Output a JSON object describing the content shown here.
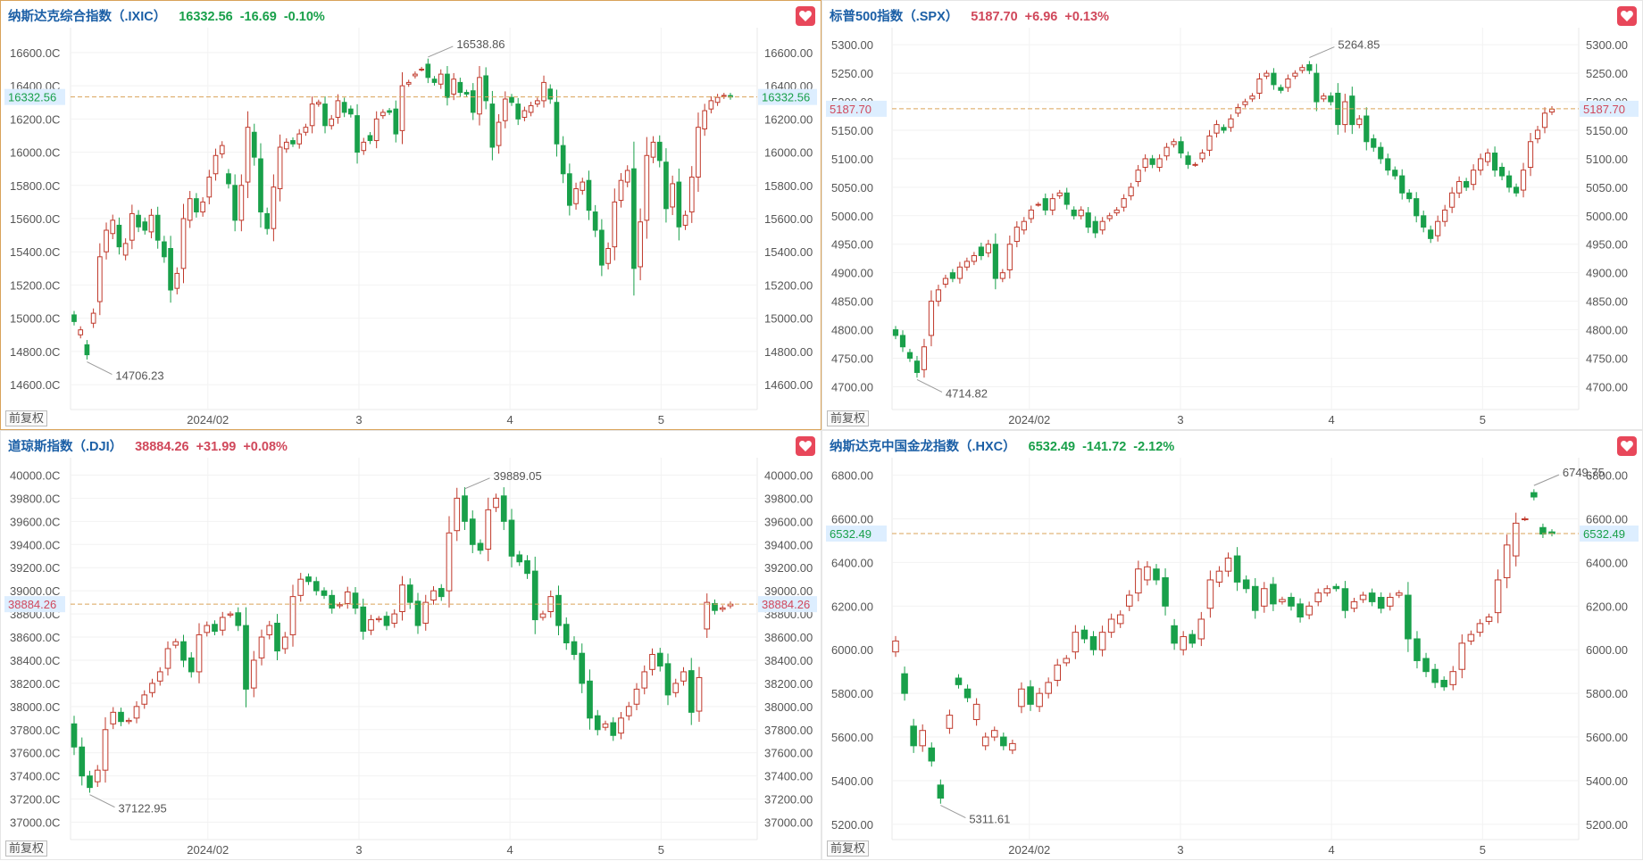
{
  "colors": {
    "up": "#c0392b",
    "down": "#19a04a",
    "up_text": "#d0485b",
    "down_text": "#19a04a",
    "name": "#1b5fa6",
    "selected_border": "#d9a35a",
    "price_line": "#d9a35a",
    "price_bg": "#ddeeff"
  },
  "icons": {
    "favorite": "heart-icon"
  },
  "panels": [
    {
      "id": "ixic",
      "selected": true,
      "name": "纳斯达克综合指数（.IXIC）",
      "value": "16332.56",
      "change": "-16.69",
      "pct": "-0.10%",
      "direction": "down",
      "adj_label": "前复权",
      "price_label": "16332.56",
      "high_label": "16538.86",
      "low_label": "14706.23",
      "ticks": [
        "16600.0C",
        "16400.0C",
        "16200.0C",
        "16000.0C",
        "15800.0C",
        "15600.0C",
        "15400.0C",
        "15200.0C",
        "15000.0C",
        "14800.0C",
        "14600.0C"
      ],
      "right_ticks": [
        "16600.00",
        "16400.00",
        "16200.00",
        "16000.00",
        "15800.00",
        "15600.00",
        "15400.00",
        "15200.00",
        "15000.00",
        "14800.00",
        "14600.00"
      ],
      "x_labels": [
        "2024/02",
        "3",
        "4",
        "5"
      ]
    },
    {
      "id": "spx",
      "selected": false,
      "name": "标普500指数（.SPX）",
      "value": "5187.70",
      "change": "+6.96",
      "pct": "+0.13%",
      "direction": "up",
      "adj_label": "前复权",
      "price_label": "5187.70",
      "high_label": "5264.85",
      "low_label": "4714.82",
      "ticks": [
        "5300.00",
        "5250.00",
        "5200.00",
        "5150.00",
        "5100.00",
        "5050.00",
        "5000.00",
        "4950.00",
        "4900.00",
        "4850.00",
        "4800.00",
        "4750.00",
        "4700.00"
      ],
      "right_ticks": [
        "5300.00",
        "5250.00",
        "5200.00",
        "5150.00",
        "5100.00",
        "5050.00",
        "5000.00",
        "4950.00",
        "4900.00",
        "4850.00",
        "4800.00",
        "4750.00",
        "4700.00"
      ],
      "x_labels": [
        "2024/02",
        "3",
        "4",
        "5"
      ]
    },
    {
      "id": "dji",
      "selected": false,
      "name": "道琼斯指数（.DJI）",
      "value": "38884.26",
      "change": "+31.99",
      "pct": "+0.08%",
      "direction": "up",
      "adj_label": "前复权",
      "price_label": "38884.26",
      "high_label": "39889.05",
      "low_label": "37122.95",
      "ticks": [
        "40000.0C",
        "39800.0C",
        "39600.0C",
        "39400.0C",
        "39200.0C",
        "39000.0C",
        "38800.0C",
        "38600.0C",
        "38400.0C",
        "38200.0C",
        "38000.0C",
        "37800.0C",
        "37600.0C",
        "37400.0C",
        "37200.0C",
        "37000.0C"
      ],
      "right_ticks": [
        "40000.00",
        "39800.00",
        "39600.00",
        "39400.00",
        "39200.00",
        "39000.00",
        "38800.00",
        "38600.00",
        "38400.00",
        "38200.00",
        "38000.00",
        "37800.00",
        "37600.00",
        "37400.00",
        "37200.00",
        "37000.00"
      ],
      "x_labels": [
        "2024/02",
        "3",
        "4",
        "5"
      ]
    },
    {
      "id": "hxc",
      "selected": false,
      "name": "纳斯达克中国金龙指数（.HXC）",
      "value": "6532.49",
      "change": "-141.72",
      "pct": "-2.12%",
      "direction": "down",
      "adj_label": "前复权",
      "price_label": "6532.49",
      "high_label": "6749.75",
      "low_label": "5311.61",
      "ticks": [
        "6800.00",
        "6600.00",
        "6400.00",
        "6200.00",
        "6000.00",
        "5800.00",
        "5600.00",
        "5400.00",
        "5200.00"
      ],
      "right_ticks": [
        "6800.00",
        "6600.00",
        "6400.00",
        "6200.00",
        "6000.00",
        "5800.00",
        "5600.00",
        "5400.00",
        "5200.00"
      ],
      "x_labels": [
        "2024/02",
        "3",
        "4",
        "5"
      ]
    }
  ],
  "chart_data": [
    {
      "type": "candlestick",
      "title": "纳斯达克综合指数（.IXIC）",
      "ylim": [
        14450,
        16750
      ],
      "x_labels": [
        "2024/02",
        "3",
        "4",
        "5"
      ],
      "last_price": 16332.56,
      "annotated_high": 16538.86,
      "annotated_low": 14706.23,
      "closes": [
        14980,
        14930,
        14780,
        15030,
        15370,
        15530,
        15590,
        15430,
        15450,
        15630,
        15550,
        15530,
        15620,
        15470,
        15370,
        15170,
        15270,
        15600,
        15720,
        15640,
        15700,
        15850,
        15980,
        16040,
        15810,
        15590,
        15800,
        16150,
        15970,
        15640,
        15540,
        15790,
        16030,
        16060,
        16050,
        16110,
        16150,
        16290,
        16300,
        16160,
        16200,
        16310,
        16240,
        16230,
        16000,
        16060,
        16070,
        16200,
        16240,
        16240,
        16110,
        16400,
        16420,
        16470,
        16500,
        16450,
        16420,
        16470,
        16330,
        16440,
        16360,
        16350,
        16240,
        16450,
        16310,
        16030,
        16180,
        16320,
        16300,
        16200,
        16250,
        16280,
        16310,
        16420,
        16320,
        16050,
        15870,
        15680,
        15780,
        15820,
        15650,
        15530,
        15320,
        15420,
        15700,
        15830,
        15890,
        15300,
        15580,
        15980,
        16060,
        15950,
        15660,
        15810,
        15550,
        15620,
        15850,
        16150,
        16250,
        16310,
        16330,
        16342,
        16332
      ],
      "opens": [
        15020,
        14900,
        14840,
        14970,
        15100,
        15400,
        15510,
        15560,
        15380,
        15470,
        15620,
        15580,
        15520,
        15620,
        15460,
        15420,
        15180,
        15300,
        15590,
        15720,
        15640,
        15730,
        15870,
        15990,
        15870,
        15800,
        15590,
        15820,
        16120,
        15960,
        15630,
        15540,
        15780,
        16020,
        16070,
        16050,
        16120,
        16160,
        16290,
        16290,
        16160,
        16210,
        16300,
        16260,
        16220,
        16010,
        16100,
        16070,
        16220,
        16250,
        16260,
        16130,
        16410,
        16460,
        16500,
        16530,
        16440,
        16410,
        16470,
        16350,
        16420,
        16360,
        16370,
        16230,
        16460,
        16290,
        16040,
        16190,
        16330,
        16290,
        16210,
        16240,
        16290,
        16310,
        16380,
        16300,
        16040,
        15870,
        15690,
        15770,
        15830,
        15640,
        15530,
        15330,
        15430,
        15710,
        15820,
        15900,
        15310,
        15590,
        15970,
        16060,
        15940,
        15670,
        15820,
        15560,
        15640,
        15850,
        16140,
        16260,
        16300,
        16336,
        16341
      ]
    },
    {
      "type": "candlestick",
      "title": "标普500指数（.SPX）",
      "ylim": [
        4660,
        5330
      ],
      "x_labels": [
        "2024/02",
        "3",
        "4",
        "5"
      ],
      "last_price": 5187.7,
      "annotated_high": 5264.85,
      "annotated_low": 4714.82,
      "closes": [
        4790,
        4770,
        4750,
        4725,
        4770,
        4850,
        4870,
        4890,
        4890,
        4910,
        4920,
        4930,
        4930,
        4950,
        4890,
        4900,
        4950,
        4980,
        4990,
        5010,
        5020,
        5010,
        5030,
        5040,
        5020,
        5000,
        5010,
        4980,
        4970,
        4990,
        5000,
        5010,
        5030,
        5050,
        5080,
        5100,
        5090,
        5100,
        5120,
        5130,
        5110,
        5090,
        5090,
        5110,
        5140,
        5160,
        5150,
        5170,
        5190,
        5200,
        5210,
        5240,
        5250,
        5230,
        5220,
        5240,
        5250,
        5260,
        5255,
        5200,
        5210,
        5200,
        5160,
        5200,
        5160,
        5170,
        5130,
        5120,
        5100,
        5080,
        5070,
        5040,
        5030,
        5000,
        4980,
        4960,
        4990,
        5010,
        5040,
        5060,
        5050,
        5080,
        5100,
        5110,
        5080,
        5070,
        5050,
        5040,
        5080,
        5130,
        5150,
        5180,
        5187
      ],
      "opens": [
        4800,
        4790,
        4760,
        4745,
        4730,
        4790,
        4850,
        4880,
        4900,
        4890,
        4910,
        4920,
        4945,
        4935,
        4950,
        4890,
        4905,
        4955,
        4975,
        4995,
        5020,
        5030,
        5010,
        5035,
        5040,
        5010,
        5000,
        5005,
        4990,
        4975,
        4995,
        5005,
        5015,
        5035,
        5060,
        5085,
        5100,
        5085,
        5105,
        5125,
        5130,
        5105,
        5090,
        5100,
        5115,
        5145,
        5155,
        5155,
        5180,
        5195,
        5205,
        5215,
        5245,
        5250,
        5225,
        5225,
        5245,
        5255,
        5265,
        5250,
        5205,
        5210,
        5215,
        5160,
        5210,
        5160,
        5175,
        5135,
        5120,
        5100,
        5080,
        5070,
        5040,
        5030,
        5000,
        4975,
        4965,
        4990,
        5015,
        5040,
        5060,
        5055,
        5080,
        5095,
        5110,
        5085,
        5070,
        5050,
        5045,
        5085,
        5135,
        5155,
        5182
      ]
    },
    {
      "type": "candlestick",
      "title": "道琼斯指数（.DJI）",
      "ylim": [
        36850,
        40150
      ],
      "x_labels": [
        "2024/02",
        "3",
        "4",
        "5"
      ],
      "last_price": 38884.26,
      "annotated_high": 39889.05,
      "annotated_low": 37122.95,
      "closes": [
        37650,
        37400,
        37300,
        37450,
        37800,
        37950,
        37870,
        37880,
        38000,
        38100,
        38200,
        38300,
        38500,
        38560,
        38400,
        38300,
        38620,
        38700,
        38650,
        38770,
        38800,
        38700,
        38150,
        38400,
        38600,
        38700,
        38480,
        38600,
        38950,
        39100,
        39080,
        39000,
        38960,
        38850,
        38880,
        38990,
        38850,
        38650,
        38750,
        38760,
        38700,
        38800,
        39050,
        38900,
        38700,
        38900,
        39000,
        38950,
        39500,
        39800,
        39600,
        39400,
        39350,
        39700,
        39800,
        39600,
        39300,
        39250,
        39150,
        38750,
        38800,
        38950,
        38700,
        38550,
        38450,
        38200,
        37900,
        37800,
        37850,
        37750,
        37900,
        38000,
        38150,
        38300,
        38450,
        38350,
        38100,
        38200,
        38300,
        37950,
        38250,
        38900,
        38830,
        38852,
        38884
      ],
      "opens": [
        37850,
        37650,
        37400,
        37350,
        37450,
        37850,
        37950,
        37870,
        37900,
        38020,
        38120,
        38220,
        38330,
        38530,
        38560,
        38420,
        38300,
        38640,
        38710,
        38660,
        38790,
        38810,
        38700,
        38160,
        38420,
        38620,
        38720,
        38500,
        38620,
        38960,
        39120,
        39080,
        39000,
        38960,
        38870,
        38890,
        38980,
        38860,
        38660,
        38750,
        38780,
        38720,
        38820,
        39050,
        38910,
        38720,
        38920,
        39020,
        39000,
        39520,
        39820,
        39620,
        39410,
        39360,
        39720,
        39820,
        39610,
        39310,
        39260,
        39170,
        38770,
        38820,
        38960,
        38710,
        38560,
        38460,
        38220,
        37920,
        37820,
        37860,
        37770,
        37920,
        38020,
        38160,
        38320,
        38460,
        38370,
        38120,
        38220,
        38310,
        37960,
        38670,
        38890,
        38840,
        38870
      ]
    },
    {
      "type": "candlestick",
      "title": "纳斯达克中国金龙指数（.HXC）",
      "ylim": [
        5130,
        6880
      ],
      "x_labels": [
        "2024/02",
        "3",
        "4",
        "5"
      ],
      "last_price": 6532.49,
      "annotated_high": 6749.75,
      "annotated_low": 5311.61,
      "closes": [
        6040,
        5800,
        5560,
        5630,
        5490,
        5320,
        5700,
        5840,
        5780,
        5750,
        5600,
        5630,
        5560,
        5570,
        5820,
        5750,
        5800,
        5850,
        5930,
        5960,
        6080,
        6050,
        6000,
        6080,
        6140,
        6160,
        6250,
        6370,
        6380,
        6320,
        6200,
        6030,
        6060,
        6030,
        6140,
        6320,
        6360,
        6420,
        6310,
        6280,
        6180,
        6280,
        6210,
        6230,
        6200,
        6150,
        6200,
        6260,
        6280,
        6280,
        6180,
        6220,
        6250,
        6220,
        6190,
        6240,
        6260,
        6050,
        5950,
        5900,
        5850,
        5830,
        5900,
        6030,
        6070,
        6120,
        6150,
        6320,
        6480,
        6580,
        6600,
        6700,
        6530,
        6532
      ],
      "opens": [
        5990,
        5890,
        5650,
        5560,
        5550,
        5380,
        5640,
        5870,
        5820,
        5680,
        5560,
        5600,
        5600,
        5540,
        5740,
        5830,
        5740,
        5800,
        5860,
        5940,
        5990,
        6090,
        6060,
        6000,
        6080,
        6120,
        6200,
        6260,
        6320,
        6370,
        6330,
        6110,
        6000,
        6070,
        6050,
        6190,
        6310,
        6360,
        6430,
        6320,
        6290,
        6200,
        6300,
        6220,
        6240,
        6210,
        6160,
        6220,
        6260,
        6290,
        6280,
        6190,
        6230,
        6260,
        6240,
        6200,
        6250,
        6250,
        6050,
        5960,
        5910,
        5860,
        5840,
        5910,
        6040,
        6080,
        6130,
        6170,
        6330,
        6430,
        6600,
        6720,
        6560,
        6540
      ]
    }
  ]
}
